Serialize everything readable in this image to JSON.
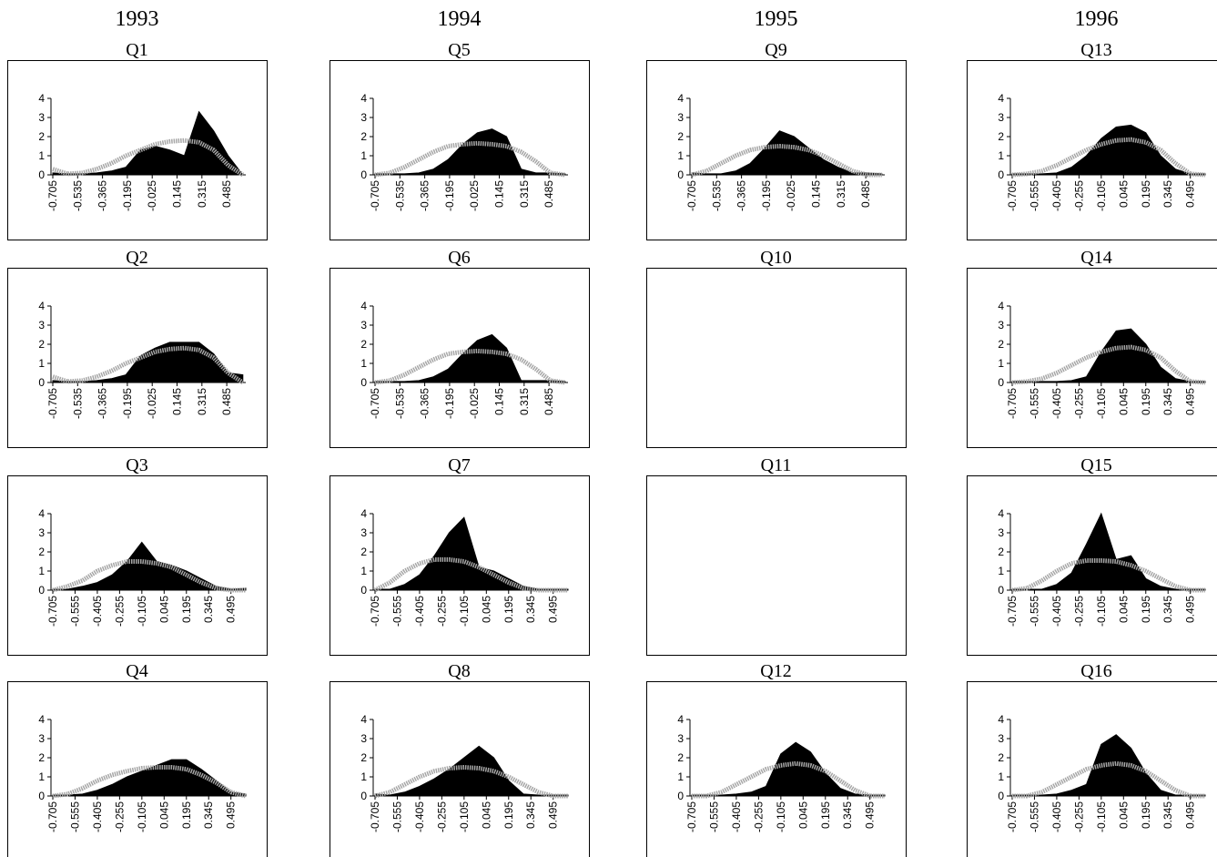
{
  "headers": [
    "1993",
    "1994",
    "1995",
    "1996"
  ],
  "chart_data": [
    {
      "type": "area",
      "title": "Q1",
      "x": [
        -0.705,
        -0.605,
        -0.505,
        -0.405,
        -0.305,
        -0.205,
        -0.105,
        -0.005,
        0.095,
        0.195,
        0.295,
        0.395,
        0.495,
        0.595
      ],
      "xlim": [
        -0.705,
        0.615
      ],
      "xticks": [
        -0.705,
        -0.535,
        -0.365,
        -0.195,
        -0.025,
        0.145,
        0.315,
        0.485
      ],
      "ylim": [
        0,
        4
      ],
      "yticks": [
        0,
        1,
        2,
        3,
        4
      ],
      "series": [
        {
          "color": "#000000",
          "style": "area",
          "values": [
            0.1,
            0.05,
            0.05,
            0.1,
            0.2,
            0.4,
            1.3,
            1.5,
            1.3,
            1.0,
            3.3,
            2.3,
            1.0,
            0.0
          ]
        },
        {
          "color": "#a6a6a6",
          "style": "dashed",
          "values": [
            0.3,
            0.05,
            0.1,
            0.3,
            0.6,
            1.0,
            1.3,
            1.6,
            1.75,
            1.8,
            1.7,
            1.3,
            0.5,
            0.0
          ]
        }
      ]
    },
    {
      "type": "area",
      "title": "Q2",
      "x": [
        -0.705,
        -0.605,
        -0.505,
        -0.405,
        -0.305,
        -0.205,
        -0.105,
        -0.005,
        0.095,
        0.195,
        0.295,
        0.395,
        0.495,
        0.595
      ],
      "xlim": [
        -0.705,
        0.615
      ],
      "xticks": [
        -0.705,
        -0.535,
        -0.365,
        -0.195,
        -0.025,
        0.145,
        0.315,
        0.485
      ],
      "ylim": [
        0,
        4
      ],
      "yticks": [
        0,
        1,
        2,
        3,
        4
      ],
      "series": [
        {
          "color": "#000000",
          "style": "area",
          "values": [
            0.1,
            0.05,
            0.05,
            0.1,
            0.2,
            0.4,
            1.4,
            1.8,
            2.1,
            2.1,
            2.1,
            1.5,
            0.5,
            0.4
          ]
        },
        {
          "color": "#a6a6a6",
          "style": "dashed",
          "values": [
            0.3,
            0.05,
            0.1,
            0.3,
            0.6,
            1.0,
            1.3,
            1.6,
            1.75,
            1.8,
            1.7,
            1.3,
            0.5,
            0.0
          ]
        }
      ]
    },
    {
      "type": "area",
      "title": "Q3",
      "x": [
        -0.705,
        -0.605,
        -0.505,
        -0.405,
        -0.305,
        -0.205,
        -0.105,
        -0.005,
        0.095,
        0.195,
        0.295,
        0.395,
        0.495,
        0.595
      ],
      "xlim": [
        -0.705,
        0.595
      ],
      "xticks": [
        -0.705,
        -0.555,
        -0.405,
        -0.255,
        -0.105,
        0.045,
        0.195,
        0.345,
        0.495
      ],
      "ylim": [
        0,
        4
      ],
      "yticks": [
        0,
        1,
        2,
        3,
        4
      ],
      "series": [
        {
          "color": "#000000",
          "style": "area",
          "values": [
            0.05,
            0.05,
            0.2,
            0.4,
            0.8,
            1.5,
            2.5,
            1.5,
            1.3,
            1.0,
            0.6,
            0.2,
            0.05,
            0.1
          ]
        },
        {
          "color": "#a6a6a6",
          "style": "dashed",
          "values": [
            0.0,
            0.2,
            0.5,
            1.0,
            1.3,
            1.5,
            1.5,
            1.4,
            1.2,
            0.8,
            0.4,
            0.1,
            0.0,
            0.0
          ]
        }
      ]
    },
    {
      "type": "area",
      "title": "Q4",
      "x": [
        -0.705,
        -0.605,
        -0.505,
        -0.405,
        -0.305,
        -0.205,
        -0.105,
        -0.005,
        0.095,
        0.195,
        0.295,
        0.395,
        0.495,
        0.595
      ],
      "xlim": [
        -0.705,
        0.595
      ],
      "xticks": [
        -0.705,
        -0.555,
        -0.405,
        -0.255,
        -0.105,
        0.045,
        0.195,
        0.345,
        0.495
      ],
      "ylim": [
        0,
        4
      ],
      "yticks": [
        0,
        1,
        2,
        3,
        4
      ],
      "series": [
        {
          "color": "#000000",
          "style": "area",
          "values": [
            0.05,
            0.05,
            0.1,
            0.3,
            0.6,
            1.0,
            1.3,
            1.6,
            1.9,
            1.9,
            1.4,
            0.8,
            0.2,
            0.1
          ]
        },
        {
          "color": "#a6a6a6",
          "style": "dashed",
          "values": [
            0.0,
            0.1,
            0.4,
            0.8,
            1.1,
            1.3,
            1.45,
            1.5,
            1.5,
            1.4,
            1.1,
            0.7,
            0.2,
            0.0
          ]
        }
      ]
    },
    {
      "type": "area",
      "title": "Q5",
      "x": [
        -0.705,
        -0.605,
        -0.505,
        -0.405,
        -0.305,
        -0.205,
        -0.105,
        -0.005,
        0.095,
        0.195,
        0.295,
        0.395,
        0.495,
        0.595
      ],
      "xlim": [
        -0.705,
        0.615
      ],
      "xticks": [
        -0.705,
        -0.535,
        -0.365,
        -0.195,
        -0.025,
        0.145,
        0.315,
        0.485
      ],
      "ylim": [
        0,
        4
      ],
      "yticks": [
        0,
        1,
        2,
        3,
        4
      ],
      "series": [
        {
          "color": "#000000",
          "style": "area",
          "values": [
            0.05,
            0.05,
            0.05,
            0.1,
            0.3,
            0.8,
            1.6,
            2.2,
            2.4,
            2.0,
            0.3,
            0.1,
            0.1,
            0.05
          ]
        },
        {
          "color": "#a6a6a6",
          "style": "dashed",
          "values": [
            0.0,
            0.1,
            0.4,
            0.8,
            1.2,
            1.5,
            1.6,
            1.65,
            1.6,
            1.5,
            1.2,
            0.7,
            0.1,
            0.0
          ]
        }
      ]
    },
    {
      "type": "area",
      "title": "Q6",
      "x": [
        -0.705,
        -0.605,
        -0.505,
        -0.405,
        -0.305,
        -0.205,
        -0.105,
        -0.005,
        0.095,
        0.195,
        0.295,
        0.395,
        0.495,
        0.595
      ],
      "xlim": [
        -0.705,
        0.615
      ],
      "xticks": [
        -0.705,
        -0.535,
        -0.365,
        -0.195,
        -0.025,
        0.145,
        0.315,
        0.485
      ],
      "ylim": [
        0,
        4
      ],
      "yticks": [
        0,
        1,
        2,
        3,
        4
      ],
      "series": [
        {
          "color": "#000000",
          "style": "area",
          "values": [
            0.05,
            0.05,
            0.05,
            0.1,
            0.3,
            0.7,
            1.5,
            2.2,
            2.5,
            1.8,
            0.1,
            0.1,
            0.1,
            0.05
          ]
        },
        {
          "color": "#a6a6a6",
          "style": "dashed",
          "values": [
            0.0,
            0.1,
            0.4,
            0.8,
            1.2,
            1.5,
            1.6,
            1.65,
            1.6,
            1.5,
            1.2,
            0.7,
            0.1,
            0.0
          ]
        }
      ]
    },
    {
      "type": "area",
      "title": "Q7",
      "x": [
        -0.705,
        -0.605,
        -0.505,
        -0.405,
        -0.305,
        -0.205,
        -0.105,
        -0.005,
        0.095,
        0.195,
        0.295,
        0.395,
        0.495,
        0.595
      ],
      "xlim": [
        -0.705,
        0.595
      ],
      "xticks": [
        -0.705,
        -0.555,
        -0.405,
        -0.255,
        -0.105,
        0.045,
        0.195,
        0.345,
        0.495
      ],
      "ylim": [
        0,
        4
      ],
      "yticks": [
        0,
        1,
        2,
        3,
        4
      ],
      "series": [
        {
          "color": "#000000",
          "style": "area",
          "values": [
            0.05,
            0.05,
            0.3,
            0.8,
            1.8,
            3.0,
            3.8,
            1.2,
            1.0,
            0.6,
            0.2,
            0.05,
            0.05,
            0.05
          ]
        },
        {
          "color": "#a6a6a6",
          "style": "dashed",
          "values": [
            0.0,
            0.4,
            1.0,
            1.4,
            1.6,
            1.6,
            1.5,
            1.2,
            0.8,
            0.4,
            0.1,
            0.0,
            0.0,
            0.0
          ]
        }
      ]
    },
    {
      "type": "area",
      "title": "Q8",
      "x": [
        -0.705,
        -0.605,
        -0.505,
        -0.405,
        -0.305,
        -0.205,
        -0.105,
        -0.005,
        0.095,
        0.195,
        0.295,
        0.395,
        0.495,
        0.595
      ],
      "xlim": [
        -0.705,
        0.595
      ],
      "xticks": [
        -0.705,
        -0.555,
        -0.405,
        -0.255,
        -0.105,
        0.045,
        0.195,
        0.345,
        0.495
      ],
      "ylim": [
        0,
        4
      ],
      "yticks": [
        0,
        1,
        2,
        3,
        4
      ],
      "series": [
        {
          "color": "#000000",
          "style": "area",
          "values": [
            0.1,
            0.05,
            0.2,
            0.5,
            0.9,
            1.4,
            2.0,
            2.6,
            2.0,
            0.8,
            0.1,
            0.05,
            0.05,
            0.05
          ]
        },
        {
          "color": "#a6a6a6",
          "style": "dashed",
          "values": [
            0.0,
            0.2,
            0.6,
            1.0,
            1.3,
            1.45,
            1.5,
            1.45,
            1.3,
            1.0,
            0.6,
            0.2,
            0.0,
            0.0
          ]
        }
      ]
    },
    {
      "type": "area",
      "title": "Q9",
      "x": [
        -0.705,
        -0.605,
        -0.505,
        -0.405,
        -0.305,
        -0.205,
        -0.105,
        -0.005,
        0.095,
        0.195,
        0.295,
        0.395,
        0.495,
        0.595
      ],
      "xlim": [
        -0.705,
        0.615
      ],
      "xticks": [
        -0.705,
        -0.535,
        -0.365,
        -0.195,
        -0.025,
        0.145,
        0.315,
        0.485
      ],
      "ylim": [
        0,
        4
      ],
      "yticks": [
        0,
        1,
        2,
        3,
        4
      ],
      "series": [
        {
          "color": "#000000",
          "style": "area",
          "values": [
            0.1,
            0.05,
            0.05,
            0.2,
            0.6,
            1.4,
            2.3,
            2.0,
            1.4,
            0.8,
            0.4,
            0.1,
            0.1,
            0.05
          ]
        },
        {
          "color": "#a6a6a6",
          "style": "dashed",
          "values": [
            0.0,
            0.2,
            0.6,
            1.0,
            1.3,
            1.45,
            1.5,
            1.45,
            1.3,
            1.0,
            0.6,
            0.2,
            0.0,
            0.0
          ]
        }
      ]
    },
    {
      "type": "area",
      "title": "Q10"
    },
    {
      "type": "area",
      "title": "Q11"
    },
    {
      "type": "area",
      "title": "Q12",
      "x": [
        -0.705,
        -0.605,
        -0.505,
        -0.405,
        -0.305,
        -0.205,
        -0.105,
        -0.005,
        0.095,
        0.195,
        0.295,
        0.395,
        0.495,
        0.595
      ],
      "xlim": [
        -0.705,
        0.595
      ],
      "xticks": [
        -0.705,
        -0.555,
        -0.405,
        -0.255,
        -0.105,
        0.045,
        0.195,
        0.345,
        0.495
      ],
      "ylim": [
        0,
        4
      ],
      "yticks": [
        0,
        1,
        2,
        3,
        4
      ],
      "series": [
        {
          "color": "#000000",
          "style": "area",
          "values": [
            0.05,
            0.05,
            0.05,
            0.1,
            0.2,
            0.5,
            2.2,
            2.8,
            2.3,
            1.2,
            0.4,
            0.1,
            0.05,
            0.05
          ]
        },
        {
          "color": "#a6a6a6",
          "style": "dashed",
          "values": [
            0.0,
            0.0,
            0.2,
            0.6,
            1.0,
            1.4,
            1.6,
            1.7,
            1.6,
            1.3,
            0.8,
            0.3,
            0.0,
            0.0
          ]
        }
      ]
    },
    {
      "type": "area",
      "title": "Q13",
      "x": [
        -0.705,
        -0.605,
        -0.505,
        -0.405,
        -0.305,
        -0.205,
        -0.105,
        -0.005,
        0.095,
        0.195,
        0.295,
        0.395,
        0.495,
        0.595
      ],
      "xlim": [
        -0.705,
        0.595
      ],
      "xticks": [
        -0.705,
        -0.555,
        -0.405,
        -0.255,
        -0.105,
        0.045,
        0.195,
        0.345,
        0.495
      ],
      "ylim": [
        0,
        4
      ],
      "yticks": [
        0,
        1,
        2,
        3,
        4
      ],
      "series": [
        {
          "color": "#000000",
          "style": "area",
          "values": [
            0.05,
            0.05,
            0.05,
            0.1,
            0.4,
            1.0,
            1.9,
            2.5,
            2.6,
            2.2,
            1.0,
            0.3,
            0.05,
            0.05
          ]
        },
        {
          "color": "#a6a6a6",
          "style": "dashed",
          "values": [
            0.0,
            0.05,
            0.2,
            0.5,
            0.9,
            1.3,
            1.6,
            1.8,
            1.85,
            1.7,
            1.3,
            0.6,
            0.05,
            0.0
          ]
        }
      ]
    },
    {
      "type": "area",
      "title": "Q14",
      "x": [
        -0.705,
        -0.605,
        -0.505,
        -0.405,
        -0.305,
        -0.205,
        -0.105,
        -0.005,
        0.095,
        0.195,
        0.295,
        0.395,
        0.495,
        0.595
      ],
      "xlim": [
        -0.705,
        0.595
      ],
      "xticks": [
        -0.705,
        -0.555,
        -0.405,
        -0.255,
        -0.105,
        0.045,
        0.195,
        0.345,
        0.495
      ],
      "ylim": [
        0,
        4
      ],
      "yticks": [
        0,
        1,
        2,
        3,
        4
      ],
      "series": [
        {
          "color": "#000000",
          "style": "area",
          "values": [
            0.05,
            0.05,
            0.05,
            0.05,
            0.1,
            0.3,
            1.6,
            2.7,
            2.8,
            2.0,
            0.8,
            0.2,
            0.05,
            0.05
          ]
        },
        {
          "color": "#a6a6a6",
          "style": "dashed",
          "values": [
            0.0,
            0.05,
            0.2,
            0.5,
            0.9,
            1.3,
            1.6,
            1.8,
            1.85,
            1.7,
            1.3,
            0.6,
            0.05,
            0.0
          ]
        }
      ]
    },
    {
      "type": "area",
      "title": "Q15",
      "x": [
        -0.705,
        -0.605,
        -0.505,
        -0.405,
        -0.305,
        -0.205,
        -0.105,
        -0.005,
        0.095,
        0.195,
        0.295,
        0.395,
        0.495,
        0.595
      ],
      "xlim": [
        -0.705,
        0.595
      ],
      "xticks": [
        -0.705,
        -0.555,
        -0.405,
        -0.255,
        -0.105,
        0.045,
        0.195,
        0.345,
        0.495
      ],
      "ylim": [
        0,
        4
      ],
      "yticks": [
        0,
        1,
        2,
        3,
        4
      ],
      "series": [
        {
          "color": "#000000",
          "style": "area",
          "values": [
            0.05,
            0.05,
            0.05,
            0.3,
            0.9,
            2.4,
            4.0,
            1.6,
            1.8,
            0.6,
            0.2,
            0.05,
            0.05,
            0.05
          ]
        },
        {
          "color": "#a6a6a6",
          "style": "dashed",
          "values": [
            0.0,
            0.1,
            0.5,
            1.0,
            1.4,
            1.55,
            1.55,
            1.5,
            1.3,
            1.0,
            0.6,
            0.2,
            0.0,
            0.0
          ]
        }
      ]
    },
    {
      "type": "area",
      "title": "Q16",
      "x": [
        -0.705,
        -0.605,
        -0.505,
        -0.405,
        -0.305,
        -0.205,
        -0.105,
        -0.005,
        0.095,
        0.195,
        0.295,
        0.395,
        0.495,
        0.595
      ],
      "xlim": [
        -0.705,
        0.595
      ],
      "xticks": [
        -0.705,
        -0.555,
        -0.405,
        -0.255,
        -0.105,
        0.045,
        0.195,
        0.345,
        0.495
      ],
      "ylim": [
        0,
        4
      ],
      "yticks": [
        0,
        1,
        2,
        3,
        4
      ],
      "series": [
        {
          "color": "#000000",
          "style": "area",
          "values": [
            0.05,
            0.05,
            0.05,
            0.1,
            0.3,
            0.6,
            2.7,
            3.2,
            2.5,
            1.2,
            0.3,
            0.05,
            0.05,
            0.05
          ]
        },
        {
          "color": "#a6a6a6",
          "style": "dashed",
          "values": [
            0.0,
            0.0,
            0.2,
            0.6,
            1.0,
            1.4,
            1.6,
            1.7,
            1.6,
            1.3,
            0.8,
            0.3,
            0.0,
            0.0
          ]
        }
      ]
    }
  ]
}
